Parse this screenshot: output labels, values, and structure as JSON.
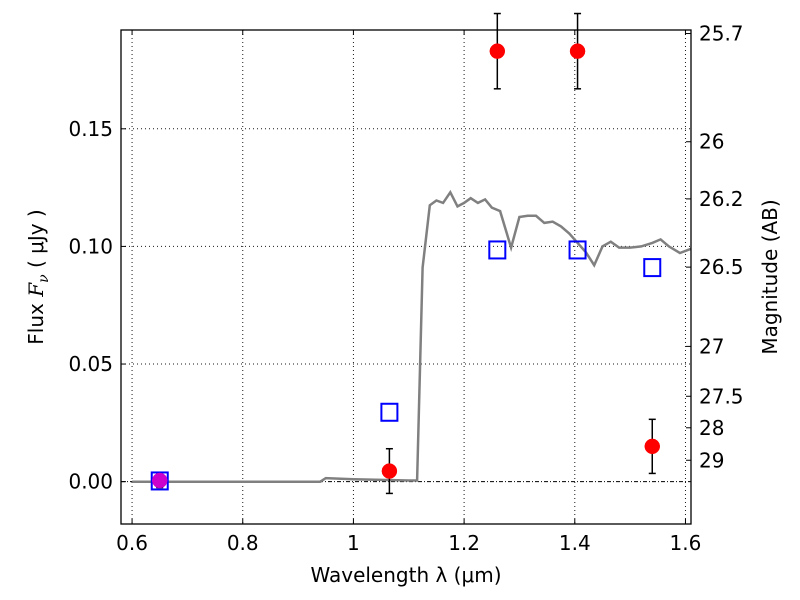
{
  "chart_data": {
    "type": "scatter",
    "xlabel": "Wavelength  λ (μm)",
    "ylabel_parts": {
      "prefix": "Flux  ",
      "symbol": "F",
      "sub": "ν",
      "suffix": "  ( μJy )"
    },
    "y2label": "Magnitude (AB)",
    "xlim": [
      0.58,
      1.61
    ],
    "ylim": [
      -0.018,
      0.192
    ],
    "x_ticks": [
      0.6,
      0.8,
      1.0,
      1.2,
      1.4,
      1.6
    ],
    "x_tick_labels": [
      "0.6",
      "0.8",
      "1",
      "1.2",
      "1.4",
      "1.6"
    ],
    "y_ticks": [
      0.0,
      0.05,
      0.1,
      0.15
    ],
    "y_tick_labels": [
      "0.00",
      "0.05",
      "0.10",
      "0.15"
    ],
    "y2_ticks": [
      {
        "label": "25.7",
        "flux": 0.1905
      },
      {
        "label": "26",
        "flux": 0.1445
      },
      {
        "label": "26.2",
        "flux": 0.1202
      },
      {
        "label": "26.5",
        "flux": 0.0912
      },
      {
        "label": "27",
        "flux": 0.0575
      },
      {
        "label": "27.5",
        "flux": 0.0363
      },
      {
        "label": "28",
        "flux": 0.0229
      },
      {
        "label": "29",
        "flux": 0.0091
      }
    ],
    "grid": true,
    "series": [
      {
        "marker": "circle",
        "color": "#ff0000",
        "points": [
          {
            "x": 0.65,
            "y": 0.0005,
            "err": 0.003
          },
          {
            "x": 1.065,
            "y": 0.0045,
            "err": 0.0095
          },
          {
            "x": 1.26,
            "y": 0.183,
            "err": 0.016
          },
          {
            "x": 1.405,
            "y": 0.183,
            "err": 0.016
          },
          {
            "x": 1.54,
            "y": 0.015,
            "err": 0.0115
          }
        ]
      },
      {
        "marker": "square",
        "color": "#0000ff",
        "points": [
          {
            "x": 0.65,
            "y": 0.0003
          },
          {
            "x": 1.065,
            "y": 0.0295
          },
          {
            "x": 1.26,
            "y": 0.0985
          },
          {
            "x": 1.405,
            "y": 0.0985
          },
          {
            "x": 1.54,
            "y": 0.091
          }
        ]
      },
      {
        "marker": "line",
        "color": "#808080",
        "points": [
          {
            "x": 0.6,
            "y": 0.0
          },
          {
            "x": 0.94,
            "y": 0.0
          },
          {
            "x": 0.95,
            "y": 0.0015
          },
          {
            "x": 1.0,
            "y": 0.001
          },
          {
            "x": 1.1,
            "y": 0.0005
          },
          {
            "x": 1.115,
            "y": 0.0005
          },
          {
            "x": 1.125,
            "y": 0.091
          },
          {
            "x": 1.138,
            "y": 0.1175
          },
          {
            "x": 1.15,
            "y": 0.1195
          },
          {
            "x": 1.162,
            "y": 0.1185
          },
          {
            "x": 1.175,
            "y": 0.123
          },
          {
            "x": 1.188,
            "y": 0.117
          },
          {
            "x": 1.2,
            "y": 0.1185
          },
          {
            "x": 1.212,
            "y": 0.1205
          },
          {
            "x": 1.225,
            "y": 0.1185
          },
          {
            "x": 1.238,
            "y": 0.12
          },
          {
            "x": 1.25,
            "y": 0.1165
          },
          {
            "x": 1.265,
            "y": 0.115
          },
          {
            "x": 1.285,
            "y": 0.0995
          },
          {
            "x": 1.3,
            "y": 0.1125
          },
          {
            "x": 1.315,
            "y": 0.113
          },
          {
            "x": 1.33,
            "y": 0.113
          },
          {
            "x": 1.345,
            "y": 0.11
          },
          {
            "x": 1.36,
            "y": 0.1105
          },
          {
            "x": 1.375,
            "y": 0.1085
          },
          {
            "x": 1.39,
            "y": 0.1055
          },
          {
            "x": 1.405,
            "y": 0.1015
          },
          {
            "x": 1.42,
            "y": 0.0975
          },
          {
            "x": 1.435,
            "y": 0.092
          },
          {
            "x": 1.45,
            "y": 0.1
          },
          {
            "x": 1.465,
            "y": 0.102
          },
          {
            "x": 1.48,
            "y": 0.0995
          },
          {
            "x": 1.5,
            "y": 0.0995
          },
          {
            "x": 1.52,
            "y": 0.1
          },
          {
            "x": 1.54,
            "y": 0.1015
          },
          {
            "x": 1.555,
            "y": 0.103
          },
          {
            "x": 1.57,
            "y": 0.1
          },
          {
            "x": 1.59,
            "y": 0.0972
          },
          {
            "x": 1.61,
            "y": 0.099
          }
        ]
      }
    ]
  }
}
